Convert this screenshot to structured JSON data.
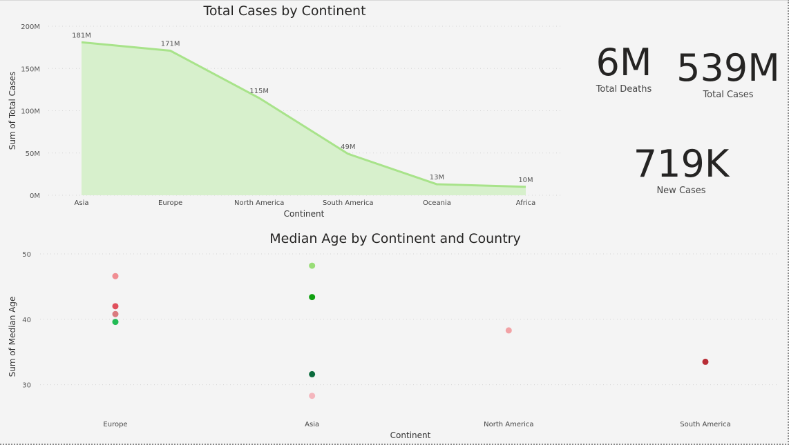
{
  "chart_data": [
    {
      "type": "area",
      "title": "Total Cases by Continent",
      "xlabel": "Continent",
      "ylabel": "Sum of Total Cases",
      "categories": [
        "Asia",
        "Europe",
        "North America",
        "South America",
        "Oceania",
        "Africa"
      ],
      "values": [
        181000000,
        171000000,
        115000000,
        49000000,
        13000000,
        10000000
      ],
      "data_labels": [
        "181M",
        "171M",
        "115M",
        "49M",
        "13M",
        "10M"
      ],
      "ylim": [
        0,
        200000000
      ],
      "yticks": [
        0,
        50000000,
        100000000,
        150000000,
        200000000
      ],
      "ytick_labels": [
        "0M",
        "50M",
        "100M",
        "150M",
        "200M"
      ],
      "grid": true,
      "colors": {
        "line": "#a8e38a",
        "fill": "#d7f0cc"
      }
    },
    {
      "type": "scatter",
      "title": "Median Age by Continent and Country",
      "xlabel": "Continent",
      "ylabel": "Sum of Median Age",
      "categories": [
        "Europe",
        "Asia",
        "North America",
        "South America"
      ],
      "ylim": [
        25,
        50
      ],
      "yticks": [
        30,
        40,
        50
      ],
      "ytick_labels": [
        "30",
        "40",
        "50"
      ],
      "grid": true,
      "points": [
        {
          "category": "Europe",
          "y": 46.6,
          "color": "#f08d92"
        },
        {
          "category": "Europe",
          "y": 42.0,
          "color": "#e0505c"
        },
        {
          "category": "Europe",
          "y": 40.8,
          "color": "#d97b7f"
        },
        {
          "category": "Europe",
          "y": 39.6,
          "color": "#22bb55"
        },
        {
          "category": "Asia",
          "y": 48.2,
          "color": "#99dd77"
        },
        {
          "category": "Asia",
          "y": 43.4,
          "color": "#10a010"
        },
        {
          "category": "Asia",
          "y": 31.6,
          "color": "#0a6a3c"
        },
        {
          "category": "Asia",
          "y": 28.3,
          "color": "#f4b6bd"
        },
        {
          "category": "North America",
          "y": 38.3,
          "color": "#f2a2a5"
        },
        {
          "category": "South America",
          "y": 33.5,
          "color": "#b82d36"
        }
      ]
    }
  ],
  "kpis": [
    {
      "value": "6M",
      "label": "Total Deaths"
    },
    {
      "value": "539M",
      "label": "Total Cases"
    },
    {
      "value": "719K",
      "label": "New Cases"
    }
  ]
}
